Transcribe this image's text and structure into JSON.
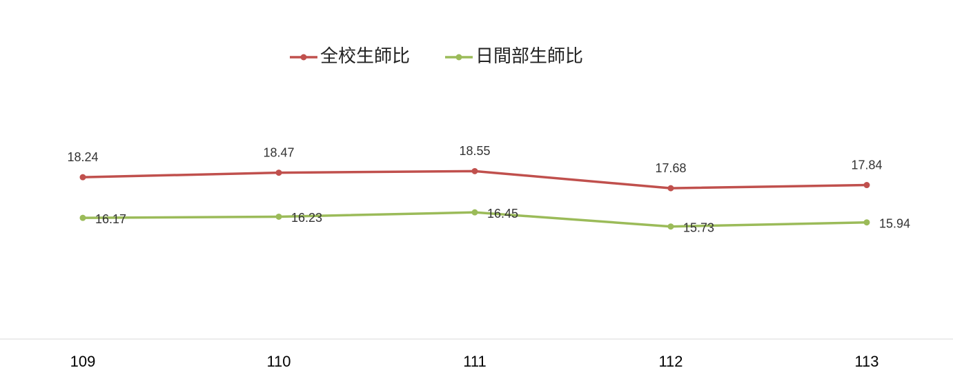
{
  "chart_data": {
    "type": "line",
    "categories": [
      "109",
      "110",
      "111",
      "112",
      "113"
    ],
    "series": [
      {
        "name": "全校生師比",
        "color": "#c0504d",
        "values": [
          18.24,
          18.47,
          18.55,
          17.68,
          17.84
        ]
      },
      {
        "name": "日間部生師比",
        "color": "#9bbb59",
        "values": [
          16.17,
          16.23,
          16.45,
          15.73,
          15.94
        ]
      }
    ],
    "ylim": [
      10,
      26
    ],
    "legend": "top"
  }
}
